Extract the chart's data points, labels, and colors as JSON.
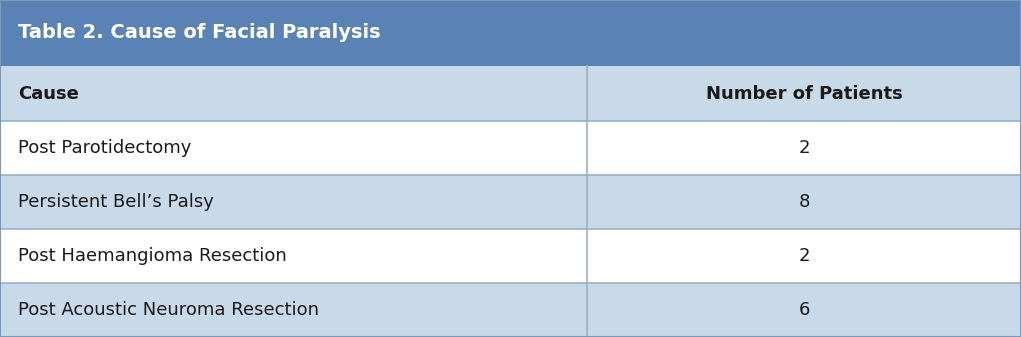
{
  "title": "Table 2. Cause of Facial Paralysis",
  "col_headers": [
    "Cause",
    "Number of Patients"
  ],
  "rows": [
    [
      "Post Parotidectomy",
      "2"
    ],
    [
      "Persistent Bell’s Palsy",
      "8"
    ],
    [
      "Post Haemangioma Resection",
      "2"
    ],
    [
      "Post Acoustic Neuroma Resection",
      "6"
    ]
  ],
  "title_bg_color": "#5b82b4",
  "header_bg_color": "#c8d9ea",
  "row_bg_even": "#ffffff",
  "row_bg_odd": "#c8d9ea",
  "title_text_color": "#ffffff",
  "header_text_color": "#1a1a1a",
  "row_text_color": "#1a1a1a",
  "border_color": "#9ab0c8",
  "outer_border_color": "#7a9ab8",
  "title_fontsize": 14,
  "header_fontsize": 13,
  "row_fontsize": 13,
  "col_split": 0.575,
  "fig_width": 10.21,
  "fig_height": 3.37,
  "dpi": 100,
  "outer_bg": "#e8eef5"
}
